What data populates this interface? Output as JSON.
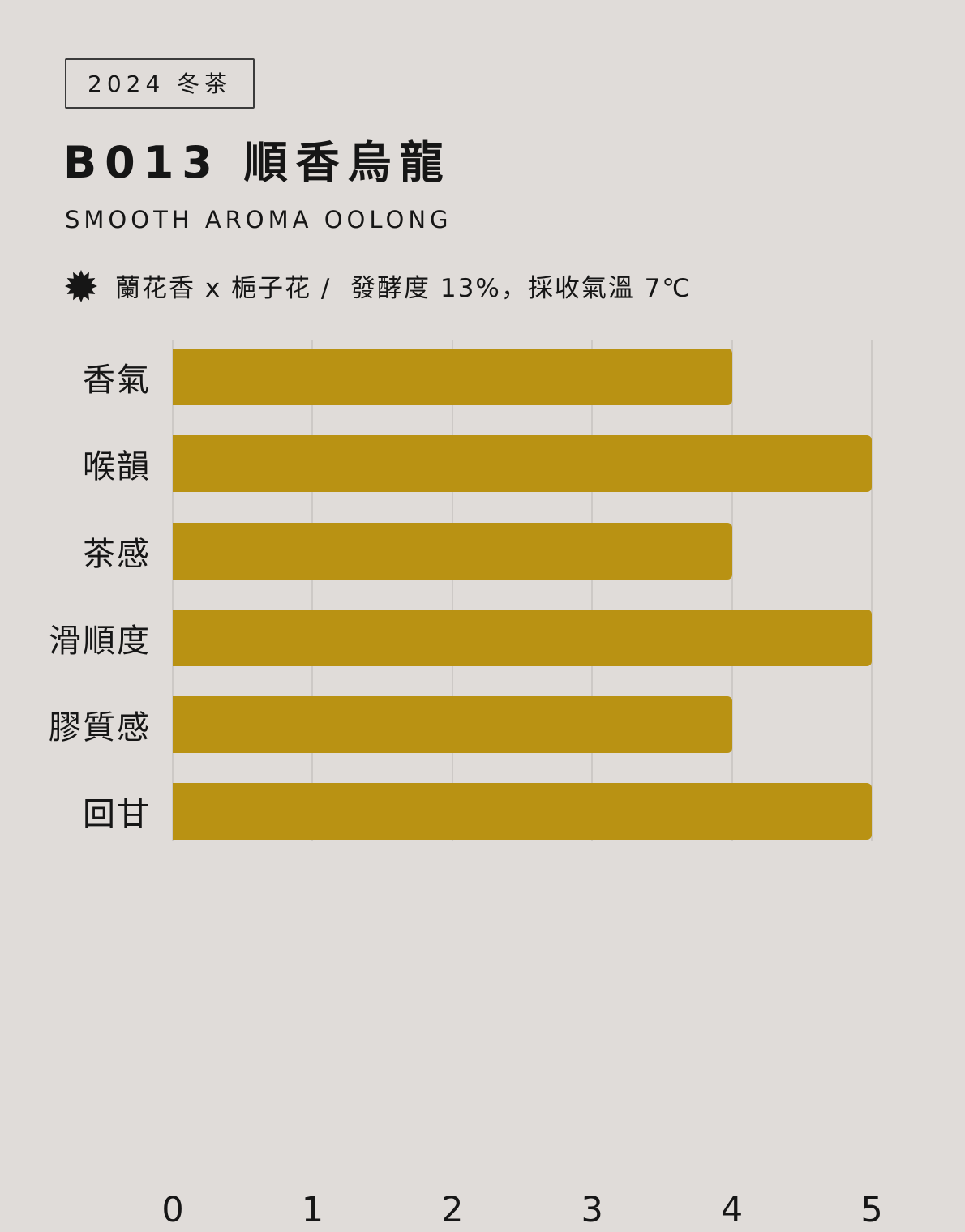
{
  "badge": {
    "label": "2024 冬茶"
  },
  "header": {
    "title": "B013 順香烏龍",
    "subtitle": "SMOOTH AROMA OOLONG"
  },
  "tasting_note": {
    "icon": "starburst-icon",
    "text": "蘭花香 x 梔子花 /  發酵度 13%，採收氣溫 7℃"
  },
  "colors": {
    "background": "#e0dcd9",
    "bar": "#b99213",
    "text": "#161616",
    "gridline": "#cdc9c6"
  },
  "chart_data": {
    "type": "bar",
    "orientation": "horizontal",
    "title": "",
    "xlabel": "",
    "ylabel": "",
    "categories": [
      "香氣",
      "喉韻",
      "茶感",
      "滑順度",
      "膠質感",
      "回甘"
    ],
    "values": [
      4,
      5,
      4,
      5,
      4,
      5
    ],
    "xlim": [
      0,
      5
    ],
    "x_ticks": [
      0,
      1,
      2,
      3,
      4,
      5
    ],
    "grid": true,
    "legend": false
  }
}
